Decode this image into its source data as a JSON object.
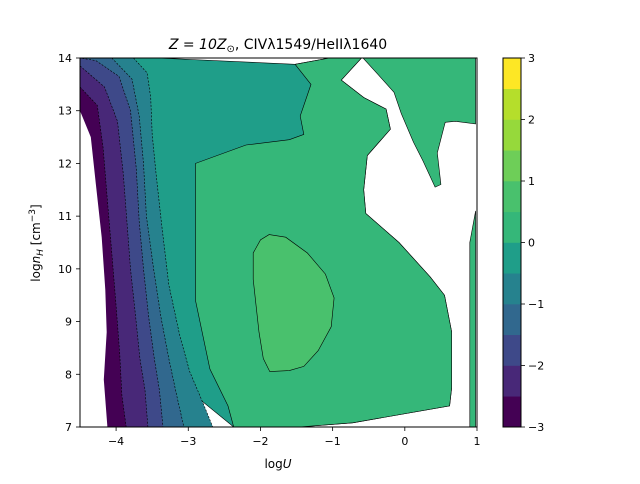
{
  "chart_data": {
    "type": "contourf",
    "title": "Z = 10Z⊙, CIVλ1549/HeIIλ1640",
    "title_parts": {
      "main": "Z = 10Z",
      "sub": "⊙",
      "rest": ", CIVλ1549/HeIIλ1640"
    },
    "xlabel": {
      "base": "log",
      "var": "U"
    },
    "ylabel": {
      "base": "log",
      "var": "n",
      "sub": "H",
      "unit_open": " [cm",
      "sup": "−3",
      "unit_close": "]"
    },
    "xlim": [
      -4.5,
      1
    ],
    "ylim": [
      7,
      14
    ],
    "x_ticks": [
      -4,
      -3,
      -2,
      -1,
      0,
      1
    ],
    "x_tick_labels": [
      "−4",
      "−3",
      "−2",
      "−1",
      "0",
      "1"
    ],
    "y_ticks": [
      7,
      8,
      9,
      10,
      11,
      12,
      13,
      14
    ],
    "y_tick_labels": [
      "7",
      "8",
      "9",
      "10",
      "11",
      "12",
      "13",
      "14"
    ],
    "colorbar": {
      "ticks": [
        -3,
        -2,
        -1,
        0,
        1,
        2,
        3
      ],
      "tick_labels": [
        "−3",
        "−2",
        "−1",
        "0",
        "1",
        "2",
        "3"
      ],
      "levels": [
        -3,
        -2.5,
        -2,
        -1.5,
        -1,
        -0.5,
        0,
        0.5,
        1,
        1.5,
        2,
        2.5,
        3
      ],
      "colors": [
        "#440154",
        "#482878",
        "#3e4989",
        "#31688e",
        "#26828e",
        "#1f9e89",
        "#35b779",
        "#49c16d",
        "#6ece58",
        "#96d93b",
        "#b5de2b",
        "#fde725"
      ]
    },
    "regions": [
      {
        "level": 0,
        "color": "#1f9e89",
        "vertices": [
          [
            -3.44,
            14
          ],
          [
            -1.52,
            13.88
          ],
          [
            -1.04,
            14
          ],
          [
            -0.6,
            14
          ],
          [
            -0.88,
            13.58
          ],
          [
            -0.57,
            13.25
          ],
          [
            -0.26,
            13.03
          ],
          [
            -0.2,
            12.65
          ],
          [
            -0.52,
            12.15
          ],
          [
            -0.57,
            11.5
          ],
          [
            -0.54,
            11.05
          ],
          [
            -0.08,
            10.5
          ],
          [
            0.35,
            9.85
          ],
          [
            0.55,
            9.5
          ],
          [
            0.65,
            8.8
          ],
          [
            0.65,
            7.75
          ],
          [
            0.62,
            7.4
          ],
          [
            -0.72,
            7.08
          ],
          [
            -1.47,
            7
          ],
          [
            -2.37,
            7
          ],
          [
            -2.82,
            7.5
          ],
          [
            -3.16,
            8.4
          ],
          [
            -3.4,
            9.5
          ],
          [
            -3.52,
            10.5
          ],
          [
            -3.54,
            11.5
          ],
          [
            -3.64,
            12.7
          ],
          [
            -4.03,
            13.55
          ],
          [
            -4.25,
            14
          ]
        ]
      },
      {
        "level": 1,
        "color": "#35b779",
        "vertices": [
          [
            -1.52,
            13.88
          ],
          [
            -1.04,
            14
          ],
          [
            -0.6,
            14
          ],
          [
            -0.88,
            13.58
          ],
          [
            -0.57,
            13.25
          ],
          [
            -0.26,
            13.03
          ],
          [
            -0.2,
            12.65
          ],
          [
            -0.52,
            12.15
          ],
          [
            -0.57,
            11.5
          ],
          [
            -0.54,
            11.05
          ],
          [
            -0.08,
            10.5
          ],
          [
            0.35,
            9.85
          ],
          [
            0.55,
            9.5
          ],
          [
            0.65,
            8.8
          ],
          [
            0.65,
            7.75
          ],
          [
            0.62,
            7.4
          ],
          [
            -0.72,
            7.08
          ],
          [
            -1.47,
            7
          ],
          [
            -2.37,
            7
          ],
          [
            -2.45,
            7.4
          ],
          [
            -2.7,
            8.1
          ],
          [
            -2.9,
            9.4
          ],
          [
            -2.9,
            10.7
          ],
          [
            -2.9,
            12
          ],
          [
            -2.2,
            12.35
          ],
          [
            -1.6,
            12.45
          ],
          [
            -1.4,
            12.55
          ],
          [
            -1.45,
            12.9
          ],
          [
            -1.3,
            13.5
          ]
        ]
      },
      {
        "level": 1,
        "color": "#35b779",
        "vertices": [
          [
            -0.58,
            14
          ],
          [
            0.98,
            14
          ],
          [
            0.98,
            12.75
          ],
          [
            0.7,
            12.8
          ],
          [
            0.56,
            12.78
          ],
          [
            0.45,
            12.2
          ],
          [
            0.5,
            11.6
          ],
          [
            0.42,
            11.55
          ],
          [
            0.25,
            12.05
          ],
          [
            0.12,
            12.4
          ],
          [
            -0.05,
            12.95
          ],
          [
            -0.15,
            13.35
          ],
          [
            -0.38,
            13.7
          ]
        ]
      },
      {
        "level": 1,
        "color": "#35b779",
        "vertices": [
          [
            0.98,
            11.1
          ],
          [
            0.9,
            10.5
          ],
          [
            0.9,
            9
          ],
          [
            0.9,
            7.8
          ],
          [
            0.9,
            7
          ],
          [
            0.98,
            7
          ]
        ]
      },
      {
        "level": 1.5,
        "color": "#49c16d",
        "vertices": [
          [
            -1.88,
            10.65
          ],
          [
            -1.65,
            10.6
          ],
          [
            -1.35,
            10.3
          ],
          [
            -1.1,
            9.9
          ],
          [
            -0.98,
            9.45
          ],
          [
            -1.02,
            8.9
          ],
          [
            -1.2,
            8.45
          ],
          [
            -1.4,
            8.15
          ],
          [
            -1.6,
            8.07
          ],
          [
            -1.87,
            8.05
          ],
          [
            -1.96,
            8.3
          ],
          [
            -2.02,
            8.8
          ],
          [
            -2.06,
            9.3
          ],
          [
            -2.1,
            9.8
          ],
          [
            -2.1,
            10.3
          ],
          [
            -2.0,
            10.55
          ]
        ]
      },
      {
        "level": -0.5,
        "color": "#26828e",
        "vertices": [
          [
            -3.76,
            14
          ],
          [
            -3.57,
            13.72
          ],
          [
            -3.52,
            13.25
          ],
          [
            -3.5,
            12.55
          ],
          [
            -3.45,
            11.85
          ],
          [
            -3.37,
            10.85
          ],
          [
            -3.27,
            9.7
          ],
          [
            -3.12,
            8.75
          ],
          [
            -2.98,
            8.05
          ],
          [
            -2.78,
            7.4
          ],
          [
            -2.66,
            7
          ],
          [
            -4.5,
            7
          ],
          [
            -4.5,
            14
          ]
        ]
      },
      {
        "level": -1,
        "color": "#31688e",
        "vertices": [
          [
            -4.06,
            14
          ],
          [
            -3.78,
            13.6
          ],
          [
            -3.68,
            12.9
          ],
          [
            -3.62,
            12.0
          ],
          [
            -3.58,
            11.0
          ],
          [
            -3.48,
            10.0
          ],
          [
            -3.38,
            9.1
          ],
          [
            -3.27,
            8.3
          ],
          [
            -3.16,
            7.6
          ],
          [
            -3.06,
            7
          ],
          [
            -4.5,
            7
          ],
          [
            -4.5,
            14
          ]
        ]
      },
      {
        "level": -1.5,
        "color": "#3e4989",
        "vertices": [
          [
            -4.28,
            13.95
          ],
          [
            -3.96,
            13.65
          ],
          [
            -3.8,
            13.0
          ],
          [
            -3.72,
            11.9
          ],
          [
            -3.68,
            10.9
          ],
          [
            -3.62,
            10.0
          ],
          [
            -3.55,
            9.1
          ],
          [
            -3.47,
            8.3
          ],
          [
            -3.4,
            7.7
          ],
          [
            -3.35,
            7
          ],
          [
            -4.5,
            7
          ],
          [
            -4.5,
            14
          ]
        ]
      },
      {
        "level": -2,
        "color": "#482878",
        "vertices": [
          [
            -4.5,
            13.85
          ],
          [
            -4.16,
            13.45
          ],
          [
            -3.98,
            12.8
          ],
          [
            -3.9,
            11.8
          ],
          [
            -3.85,
            10.9
          ],
          [
            -3.8,
            10.0
          ],
          [
            -3.73,
            9.1
          ],
          [
            -3.67,
            8.3
          ],
          [
            -3.6,
            7.7
          ],
          [
            -3.56,
            7
          ],
          [
            -4.5,
            7
          ],
          [
            -4.5,
            14
          ]
        ]
      },
      {
        "level": -2.5,
        "color": "#440154",
        "vertices": [
          [
            -4.5,
            13.45
          ],
          [
            -4.26,
            13.1
          ],
          [
            -4.18,
            12.3
          ],
          [
            -4.12,
            11.3
          ],
          [
            -4.06,
            10.3
          ],
          [
            -4.0,
            9.3
          ],
          [
            -3.95,
            8.4
          ],
          [
            -3.92,
            7.6
          ],
          [
            -3.86,
            7
          ],
          [
            -4.5,
            7
          ],
          [
            -4.5,
            14
          ]
        ]
      },
      {
        "level": -3,
        "color": "#ffffff",
        "vertices": [
          [
            -4.5,
            13.0
          ],
          [
            -4.35,
            12.5
          ],
          [
            -4.28,
            11.6
          ],
          [
            -4.2,
            10.6
          ],
          [
            -4.15,
            9.6
          ],
          [
            -4.13,
            8.8
          ],
          [
            -4.17,
            7.9
          ],
          [
            -4.12,
            7
          ],
          [
            -4.5,
            7
          ],
          [
            -4.5,
            14
          ]
        ]
      }
    ]
  }
}
